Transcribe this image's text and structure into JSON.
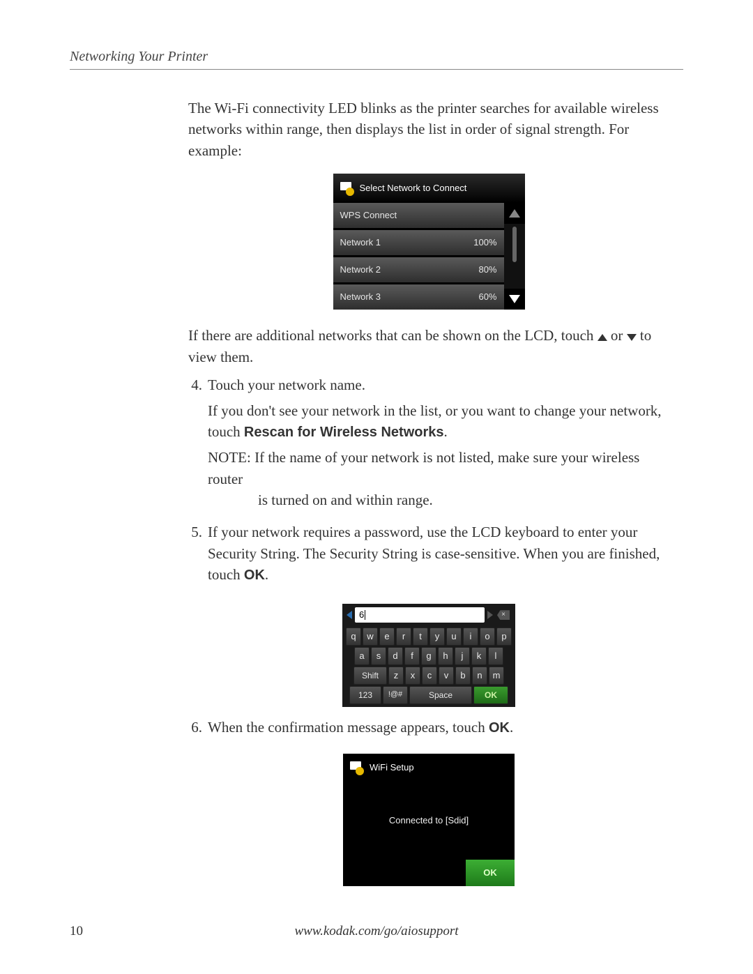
{
  "header": {
    "section_title": "Networking Your Printer"
  },
  "intro_para": "The Wi-Fi connectivity LED blinks as the printer searches for available wireless networks within range, then displays the list in order of signal strength. For example:",
  "network_lcd": {
    "title": "Select Network to Connect",
    "rows": [
      {
        "name": "WPS Connect",
        "signal": ""
      },
      {
        "name": "Network 1",
        "signal": "100%"
      },
      {
        "name": "Network 2",
        "signal": "80%"
      },
      {
        "name": "Network 3",
        "signal": "60%"
      }
    ]
  },
  "after_network_para": {
    "prefix": "If there are additional networks that can be shown on the LCD, touch ",
    "middle": " or ",
    "suffix": " to view them."
  },
  "step4": {
    "num": "4.",
    "line1": "Touch your network name.",
    "line2_pre": "If you don't see your network in the list, or you want to change your network, touch ",
    "line2_bold": "Rescan for Wireless Networks",
    "line2_post": ".",
    "note_prefix": "NOTE: ",
    "note_body": "If the name of your network is not listed, make sure your wireless router is turned on and within range."
  },
  "step5": {
    "num": "5.",
    "body_pre": "If your network requires a password, use the LCD keyboard to enter your Security String. The Security String is case-sensitive. When you are finished, touch ",
    "body_bold": "OK",
    "body_post": "."
  },
  "keyboard": {
    "input_value": "6",
    "row1": [
      "q",
      "w",
      "e",
      "r",
      "t",
      "y",
      "u",
      "i",
      "o",
      "p"
    ],
    "row2": [
      "a",
      "s",
      "d",
      "f",
      "g",
      "h",
      "j",
      "k",
      "l"
    ],
    "row3_shift": "Shift",
    "row3": [
      "z",
      "x",
      "c",
      "v",
      "b",
      "n",
      "m"
    ],
    "fn": "123",
    "sym": "!@#",
    "space": "Space",
    "ok": "OK"
  },
  "step6": {
    "num": "6.",
    "body_pre": "When the confirmation message appears, touch ",
    "body_bold": "OK",
    "body_post": "."
  },
  "confirm_lcd": {
    "title": "WiFi Setup",
    "message": "Connected to [Sdid]",
    "ok": "OK"
  },
  "footer": {
    "page_num": "10",
    "url": "www.kodak.com/go/aiosupport"
  }
}
